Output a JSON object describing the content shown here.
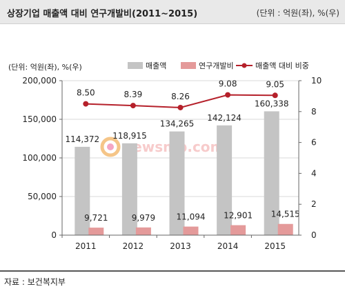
{
  "header": {
    "title": "상장기업 매출액 대비 연구개발비(2011~2015)",
    "unit_note": "(단위 : 억원(좌), %(우)"
  },
  "source": "자료 : 보건복지부",
  "watermark": "newsmp.com",
  "colors": {
    "sales_bar": "#c4c4c4",
    "rd_bar": "#e49a9a",
    "ratio_line": "#b5202a",
    "axis": "#666666",
    "grid": "#d9d9d9"
  },
  "chart_data": {
    "type": "bar",
    "unit_label": "(단위: 억원(좌), %(우)",
    "categories": [
      "2011",
      "2012",
      "2013",
      "2014",
      "2015"
    ],
    "series": [
      {
        "name": "매출액",
        "type": "bar",
        "axis": "left",
        "values": [
          114372,
          118915,
          134265,
          142124,
          160338
        ],
        "labels": [
          "114,372",
          "118,915",
          "134,265",
          "142,124",
          "160,338"
        ]
      },
      {
        "name": "연구개발비",
        "type": "bar",
        "axis": "left",
        "values": [
          9721,
          9979,
          11094,
          12901,
          14515
        ],
        "labels": [
          "9,721",
          "9,979",
          "11,094",
          "12,901",
          "14,515"
        ]
      },
      {
        "name": "매출액 대비 비중",
        "type": "line",
        "axis": "right",
        "values": [
          8.5,
          8.39,
          8.26,
          9.08,
          9.05
        ],
        "labels": [
          "8.50",
          "8.39",
          "8.26",
          "9.08",
          "9.05"
        ]
      }
    ],
    "y_left": {
      "min": 0,
      "max": 200000,
      "ticks": [
        0,
        50000,
        100000,
        150000,
        200000
      ],
      "tick_labels": [
        "0",
        "50,000",
        "100,000",
        "150,000",
        "200,000"
      ]
    },
    "y_right": {
      "min": 0,
      "max": 10,
      "ticks": [
        0,
        2,
        4,
        6,
        8,
        10
      ],
      "tick_labels": [
        "0",
        "2",
        "4",
        "6",
        "8",
        "10"
      ]
    },
    "grid": true,
    "legend_position": "top"
  }
}
